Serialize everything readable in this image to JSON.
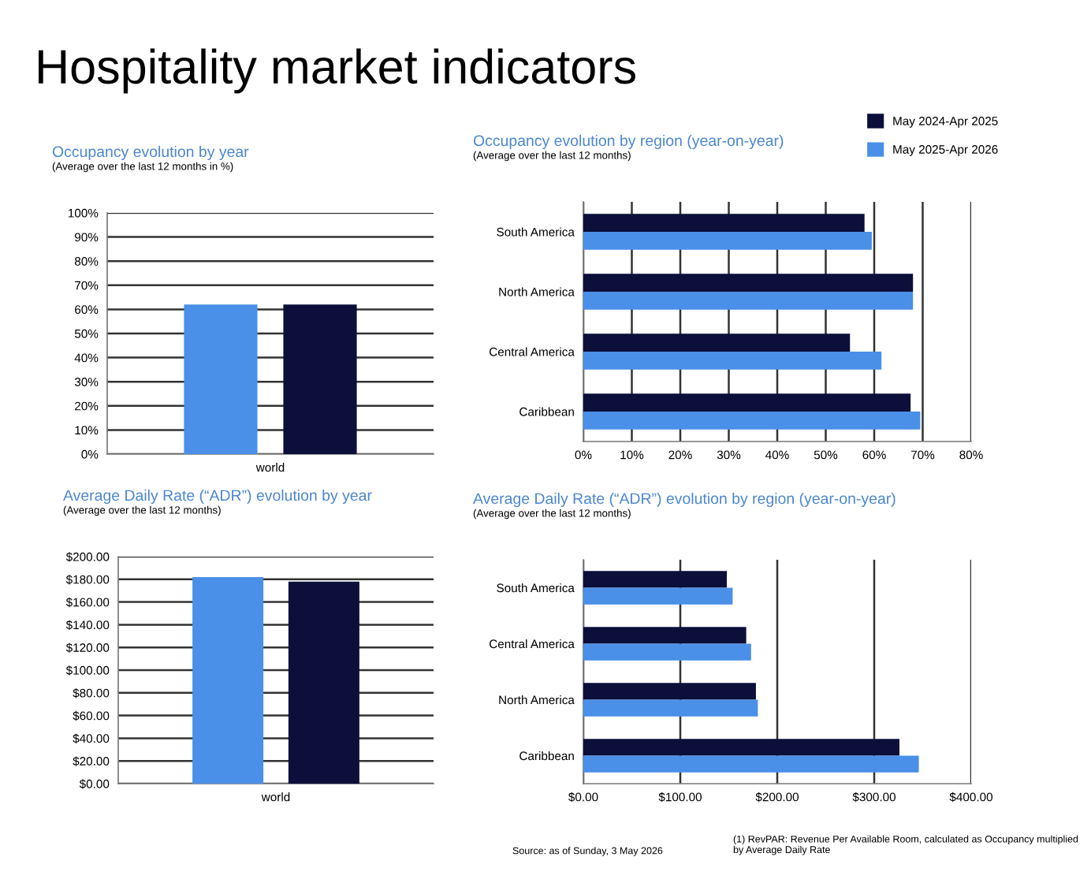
{
  "chart_data": [
    {
      "type": "other",
      "title": "Hospitality market indicators",
      "annotations": [
        "Source: as of Sunday, 3 May 2026",
        "(1) RevPAR: Revenue Per Available Room, calculated as Occupancy multiplied by Average Daily Rate"
      ]
    },
    {
      "type": "bar",
      "title": "Occupancy evolution by year",
      "subtitle": "(Average over the last 12 months in %)",
      "categories": [
        "world"
      ],
      "series": [
        {
          "color": "#4a8fe8",
          "values": [
            62
          ]
        },
        {
          "color": "#0b0f3a",
          "values": [
            62
          ]
        }
      ],
      "ylim": [
        0,
        100
      ],
      "yticks": [
        {
          "value": 0,
          "label": "0%"
        },
        {
          "value": 10,
          "label": "10%"
        },
        {
          "value": 20,
          "label": "20%"
        },
        {
          "value": 30,
          "label": "30%"
        },
        {
          "value": 40,
          "label": "40%"
        },
        {
          "value": 50,
          "label": "50%"
        },
        {
          "value": 60,
          "label": "60%"
        },
        {
          "value": 70,
          "label": "70%"
        },
        {
          "value": 80,
          "label": "80%"
        },
        {
          "value": 90,
          "label": "90%"
        },
        {
          "value": 100,
          "label": "100%"
        }
      ],
      "grid": "y"
    },
    {
      "type": "bar",
      "orientation": "horizontal",
      "title": "Occupancy evolution by region (year-on-year)",
      "subtitle": "(Average over the last 12 months)",
      "categories": [
        "South America",
        "North America",
        "Central America",
        "Caribbean"
      ],
      "series": [
        {
          "name": "May 2024-Apr 2025",
          "color": "#0b0f3a",
          "values": [
            58,
            68,
            55,
            67.5
          ]
        },
        {
          "name": "May 2025-Apr 2026",
          "color": "#4a8fe8",
          "values": [
            59.5,
            68,
            61.5,
            69.5
          ]
        }
      ],
      "xlim": [
        0,
        80
      ],
      "xticks": [
        {
          "value": 0,
          "label": "0%"
        },
        {
          "value": 10,
          "label": "10%"
        },
        {
          "value": 20,
          "label": "20%"
        },
        {
          "value": 30,
          "label": "30%"
        },
        {
          "value": 40,
          "label": "40%"
        },
        {
          "value": 50,
          "label": "50%"
        },
        {
          "value": 60,
          "label": "60%"
        },
        {
          "value": 70,
          "label": "70%"
        },
        {
          "value": 80,
          "label": "80%"
        }
      ],
      "grid": "x",
      "legend": "top right"
    },
    {
      "type": "bar",
      "title": "Average Daily Rate (“ADR”) evolution by year",
      "subtitle": "(Average over the last 12 months)",
      "categories": [
        "world"
      ],
      "series": [
        {
          "color": "#4a8fe8",
          "values": [
            182
          ]
        },
        {
          "color": "#0b0f3a",
          "values": [
            178
          ]
        }
      ],
      "ylim": [
        0,
        200
      ],
      "yticks": [
        {
          "value": 0,
          "label": "$0.00"
        },
        {
          "value": 20,
          "label": "$20.00"
        },
        {
          "value": 40,
          "label": "$40.00"
        },
        {
          "value": 60,
          "label": "$60.00"
        },
        {
          "value": 80,
          "label": "$80.00"
        },
        {
          "value": 100,
          "label": "$100.00"
        },
        {
          "value": 120,
          "label": "$120.00"
        },
        {
          "value": 140,
          "label": "$140.00"
        },
        {
          "value": 160,
          "label": "$160.00"
        },
        {
          "value": 180,
          "label": "$180.00"
        },
        {
          "value": 200,
          "label": "$200.00"
        }
      ],
      "grid": "y"
    },
    {
      "type": "bar",
      "orientation": "horizontal",
      "title": "Average Daily Rate (“ADR”) evolution by region (year-on-year)",
      "subtitle": "(Average over the last 12 months)",
      "categories": [
        "South America",
        "Central America",
        "North America",
        "Caribbean"
      ],
      "series": [
        {
          "color": "#0b0f3a",
          "values": [
            148,
            168,
            178,
            326
          ]
        },
        {
          "color": "#4a8fe8",
          "values": [
            154,
            173,
            180,
            346
          ]
        }
      ],
      "xlim": [
        0,
        400
      ],
      "xticks": [
        {
          "value": 0,
          "label": "$0.00"
        },
        {
          "value": 100,
          "label": "$100.00"
        },
        {
          "value": 200,
          "label": "$200.00"
        },
        {
          "value": 300,
          "label": "$300.00"
        },
        {
          "value": 400,
          "label": "$400.00"
        }
      ],
      "grid": "x"
    }
  ]
}
